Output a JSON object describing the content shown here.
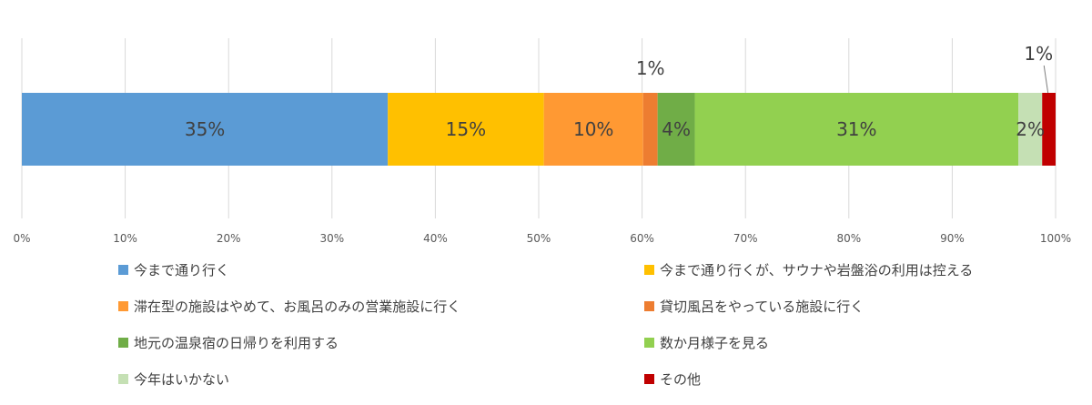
{
  "chart_data": {
    "type": "bar",
    "orientation": "horizontal-stacked-100",
    "title": "",
    "xlabel": "",
    "ylabel": "",
    "xlim": [
      0,
      100
    ],
    "grid": true,
    "legend_position": "bottom",
    "ticks": [
      "0%",
      "10%",
      "20%",
      "30%",
      "40%",
      "50%",
      "60%",
      "70%",
      "80%",
      "90%",
      "100%"
    ],
    "series": [
      {
        "name": "今まで通り行く",
        "value": 35.4,
        "label": "35%",
        "color": "#5b9bd5",
        "label_position": "inside"
      },
      {
        "name": "今まで通り行くが、サウナや岩盤浴の利用は控える",
        "value": 15.1,
        "label": "15%",
        "color": "#ffc000",
        "label_position": "inside"
      },
      {
        "name": "滞在型の施設はやめて、お風呂のみの営業施設に行く",
        "value": 9.6,
        "label": "10%",
        "color": "#ff9933",
        "label_position": "inside"
      },
      {
        "name": "貸切風呂をやっている施設に行く",
        "value": 1.4,
        "label": "1%",
        "color": "#ed7d31",
        "label_position": "above"
      },
      {
        "name": "地元の温泉宿の日帰りを利用する",
        "value": 3.6,
        "label": "4%",
        "color": "#70ad47",
        "label_position": "inside"
      },
      {
        "name": "数か月様子を見る",
        "value": 31.3,
        "label": "31%",
        "color": "#92d050",
        "label_position": "inside"
      },
      {
        "name": "今年はいかない",
        "value": 2.3,
        "label": "2%",
        "color": "#c5e0b4",
        "label_position": "inside"
      },
      {
        "name": "その他",
        "value": 1.3,
        "label": "1%",
        "color": "#c00000",
        "label_position": "above-leader"
      }
    ]
  }
}
